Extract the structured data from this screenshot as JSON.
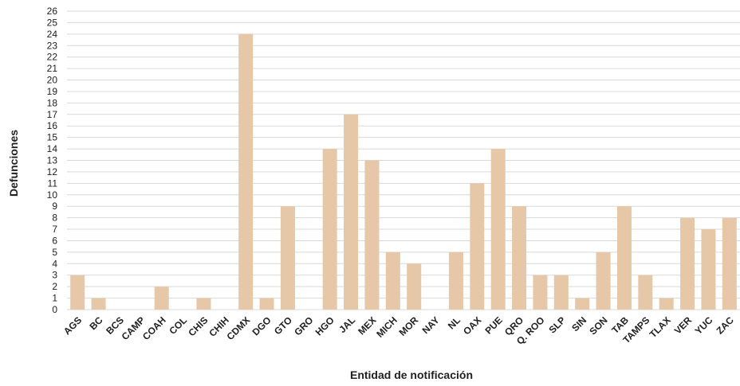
{
  "chart_data": {
    "type": "bar",
    "title": "",
    "xlabel": "Entidad de notificación",
    "ylabel": "Defunciones",
    "ylim": [
      0,
      26
    ],
    "grid": true,
    "bar_color": "#e6c8a8",
    "grid_color": "#d9d9d9",
    "categories": [
      "AGS",
      "BC",
      "BCS",
      "CAMP",
      "COAH",
      "COL",
      "CHIS",
      "CHIH",
      "CDMX",
      "DGO",
      "GTO",
      "GRO",
      "HGO",
      "JAL",
      "MEX",
      "MICH",
      "MOR",
      "NAY",
      "NL",
      "OAX",
      "PUE",
      "QRO",
      "Q. ROO",
      "SLP",
      "SIN",
      "SON",
      "TAB",
      "TAMPS",
      "TLAX",
      "VER",
      "YUC",
      "ZAC"
    ],
    "values": [
      3,
      1,
      0,
      0,
      2,
      0,
      1,
      0,
      24,
      1,
      9,
      0,
      14,
      17,
      13,
      5,
      4,
      0,
      5,
      11,
      14,
      9,
      3,
      3,
      1,
      5,
      9,
      3,
      1,
      8,
      7,
      8
    ]
  }
}
